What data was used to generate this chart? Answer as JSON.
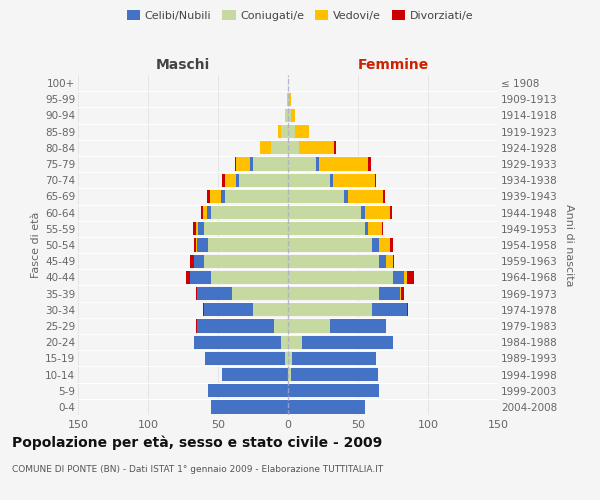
{
  "age_groups": [
    "0-4",
    "5-9",
    "10-14",
    "15-19",
    "20-24",
    "25-29",
    "30-34",
    "35-39",
    "40-44",
    "45-49",
    "50-54",
    "55-59",
    "60-64",
    "65-69",
    "70-74",
    "75-79",
    "80-84",
    "85-89",
    "90-94",
    "95-99",
    "100+"
  ],
  "birth_years": [
    "2004-2008",
    "1999-2003",
    "1994-1998",
    "1989-1993",
    "1984-1988",
    "1979-1983",
    "1974-1978",
    "1969-1973",
    "1964-1968",
    "1959-1963",
    "1954-1958",
    "1949-1953",
    "1944-1948",
    "1939-1943",
    "1934-1938",
    "1929-1933",
    "1924-1928",
    "1919-1923",
    "1914-1918",
    "1909-1913",
    "≤ 1908"
  ],
  "maschi": {
    "celibi": [
      55,
      57,
      47,
      57,
      62,
      55,
      35,
      25,
      15,
      7,
      8,
      4,
      3,
      3,
      2,
      2,
      0,
      0,
      0,
      0,
      0
    ],
    "coniugati": [
      0,
      0,
      0,
      2,
      5,
      10,
      25,
      40,
      55,
      60,
      57,
      60,
      55,
      45,
      35,
      25,
      12,
      5,
      2,
      1,
      0
    ],
    "vedovi": [
      0,
      0,
      0,
      0,
      0,
      0,
      0,
      0,
      0,
      0,
      1,
      2,
      3,
      8,
      8,
      10,
      8,
      2,
      0,
      0,
      0
    ],
    "divorziati": [
      0,
      0,
      0,
      0,
      0,
      1,
      1,
      1,
      3,
      3,
      1,
      2,
      1,
      2,
      2,
      1,
      0,
      0,
      0,
      0,
      0
    ]
  },
  "femmine": {
    "nubili": [
      55,
      65,
      62,
      60,
      65,
      40,
      25,
      15,
      8,
      5,
      5,
      2,
      3,
      3,
      2,
      2,
      0,
      0,
      0,
      0,
      0
    ],
    "coniugate": [
      0,
      0,
      2,
      3,
      10,
      30,
      60,
      65,
      75,
      65,
      60,
      55,
      52,
      40,
      30,
      20,
      8,
      5,
      2,
      1,
      0
    ],
    "vedove": [
      0,
      0,
      0,
      0,
      0,
      0,
      0,
      1,
      2,
      5,
      8,
      10,
      18,
      25,
      30,
      35,
      25,
      10,
      3,
      1,
      0
    ],
    "divorziate": [
      0,
      0,
      0,
      0,
      0,
      0,
      1,
      2,
      5,
      1,
      2,
      1,
      1,
      1,
      1,
      2,
      1,
      0,
      0,
      0,
      0
    ]
  },
  "colors": {
    "celibi_nubili": "#4472c4",
    "coniugati": "#c5d9a0",
    "vedovi": "#ffc000",
    "divorziati": "#cc0000"
  },
  "title": "Popolazione per età, sesso e stato civile - 2009",
  "subtitle": "COMUNE DI PONTE (BN) - Dati ISTAT 1° gennaio 2009 - Elaborazione TUTTITALIA.IT",
  "xlabel_left": "Maschi",
  "xlabel_right": "Femmine",
  "ylabel_left": "Fasce di età",
  "ylabel_right": "Anni di nascita",
  "xlim": 150,
  "background_color": "#f5f5f5",
  "plot_bg": "#f0f0f0",
  "grid_color": "#dddddd",
  "legend_labels": [
    "Celibi/Nubili",
    "Coniugati/e",
    "Vedovi/e",
    "Divorziati/e"
  ]
}
